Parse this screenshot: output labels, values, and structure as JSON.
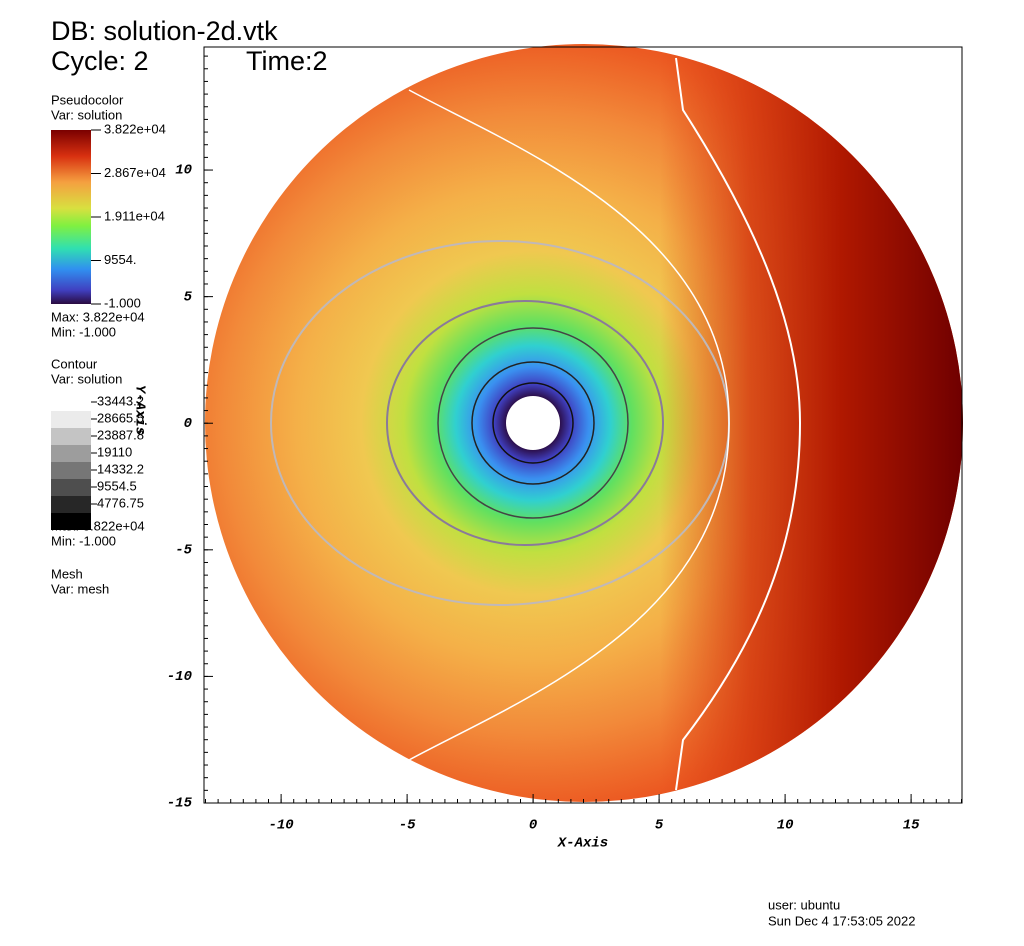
{
  "header": {
    "db": "DB: solution-2d.vtk",
    "cycle": "Cycle: 2",
    "time": "Time:2"
  },
  "chart_data": {
    "type": "pseudocolor",
    "xlabel": "X-Axis",
    "ylabel": "Y-Axis",
    "xlim": [
      -13.06,
      17.02
    ],
    "ylim": [
      -15,
      14.86
    ],
    "xticks": [
      -10,
      -5,
      0,
      5,
      10,
      15
    ],
    "yticks": [
      -15,
      -10,
      -5,
      0,
      5,
      10
    ]
  },
  "pseudocolor_legend": {
    "title": "Pseudocolor",
    "var": "Var: solution",
    "ticks": [
      "3.822e+04",
      "2.867e+04",
      "1.911e+04",
      "9554.",
      "-1.000"
    ],
    "max": "Max:  3.822e+04",
    "min": "Min: -1.000"
  },
  "contour_legend": {
    "title": "Contour",
    "var": "Var: solution",
    "levels": [
      "33443.2",
      "28665.5",
      "23887.8",
      "19110",
      "14332.2",
      "9554.5",
      "4776.75"
    ],
    "max": "Max:  3.822e+04",
    "min": "Min: -1.000"
  },
  "mesh_legend": {
    "title": "Mesh",
    "var": "Var: mesh"
  },
  "footer": {
    "user": "user: ubuntu",
    "date": "Sun Dec  4 17:53:05 2022"
  }
}
